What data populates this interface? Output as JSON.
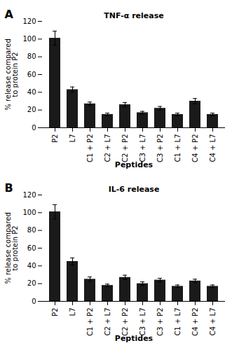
{
  "chart_data": [
    {
      "type": "bar",
      "title": "TNF-α release",
      "annotations": [
        "A"
      ],
      "categories": [
        "P2",
        "L7",
        "C1 + P2",
        "C2 + L7",
        "C2 + P2",
        "C3 + L7",
        "C3 + P2",
        "C1 + L7",
        "C4 + P2",
        "C4 + L7"
      ],
      "values": [
        101,
        43,
        27,
        15,
        26,
        17,
        22,
        15,
        30,
        15
      ],
      "errors": [
        8,
        3,
        2,
        1.5,
        2.5,
        1.5,
        2,
        1.5,
        3,
        1.5
      ],
      "color": "#1a1a1a",
      "ylabel": "% release compared\nto protein P2",
      "xlabel": "Peptides",
      "ylim": [
        0,
        120
      ],
      "yticks": [
        0,
        20,
        40,
        60,
        80,
        100,
        120
      ]
    },
    {
      "type": "bar",
      "title": "IL-6 release",
      "annotations": [
        "B"
      ],
      "categories": [
        "P2",
        "L7",
        "C1 + P2",
        "C2 + L7",
        "C2 + P2",
        "C3 + L7",
        "C3 + P2",
        "C1 + L7",
        "C4 + P2",
        "C4 + L7"
      ],
      "values": [
        101,
        45,
        25,
        18,
        27,
        20,
        24,
        17,
        23,
        17
      ],
      "errors": [
        8,
        4,
        2.5,
        1.5,
        2.5,
        2,
        2,
        1.5,
        2,
        1.5
      ],
      "color": "#1a1a1a",
      "ylabel": "% release compared\nto protein P2",
      "xlabel": "Peptides",
      "ylim": [
        0,
        120
      ],
      "yticks": [
        0,
        20,
        40,
        60,
        80,
        100,
        120
      ]
    }
  ]
}
